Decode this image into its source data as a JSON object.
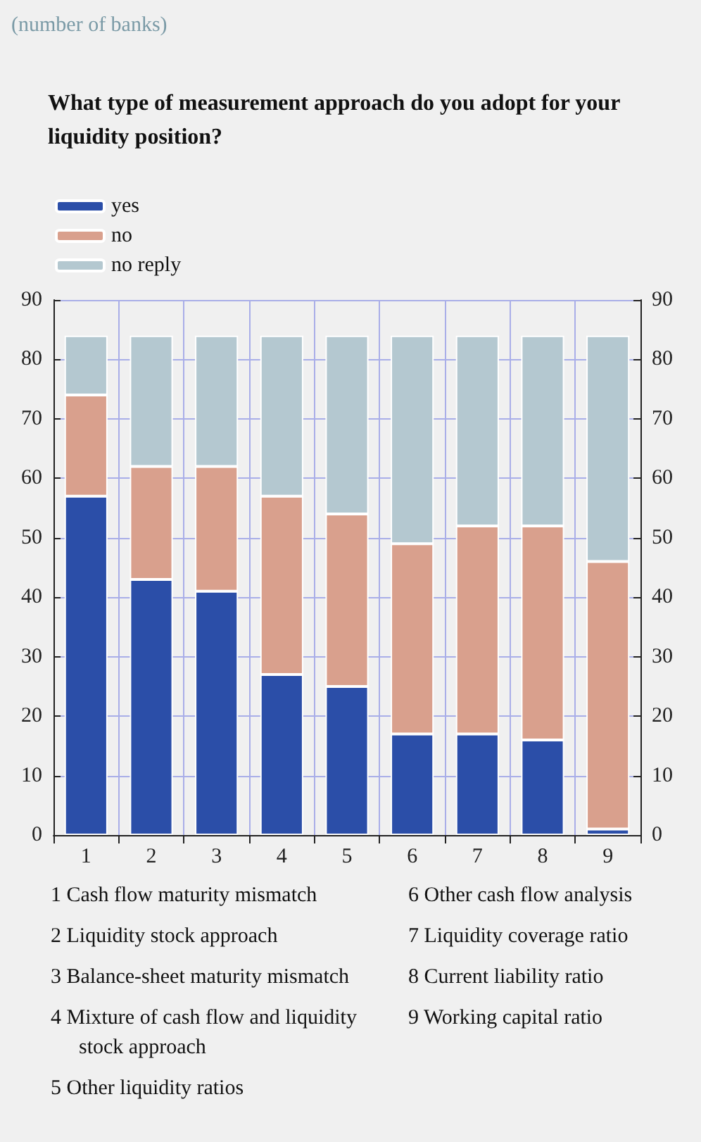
{
  "chart_data": {
    "type": "bar",
    "title": "What type of measurement approach do you adopt for your liquidity position?",
    "subtitle": "(number of banks)",
    "categories": [
      "1",
      "2",
      "3",
      "4",
      "5",
      "6",
      "7",
      "8",
      "9"
    ],
    "series": [
      {
        "name": "yes",
        "color": "#2b4ea8",
        "values": [
          57,
          43,
          41,
          27,
          25,
          17,
          17,
          16,
          1
        ]
      },
      {
        "name": "no",
        "color": "#d9a08d",
        "values": [
          17,
          19,
          21,
          30,
          29,
          32,
          35,
          36,
          45
        ]
      },
      {
        "name": "no reply",
        "color": "#b4c8d0",
        "values": [
          10,
          22,
          22,
          27,
          30,
          35,
          32,
          32,
          38
        ]
      }
    ],
    "stacked": true,
    "ylim": [
      0,
      90
    ],
    "yticks": [
      0,
      10,
      20,
      30,
      40,
      50,
      60,
      70,
      80,
      90
    ],
    "y2lim": [
      0,
      90
    ],
    "y2ticks": [
      0,
      10,
      20,
      30,
      40,
      50,
      60,
      70,
      80,
      90
    ],
    "grid": true,
    "legend": "top left",
    "annotations": [
      "1 Cash flow maturity mismatch",
      "2 Liquidity stock approach",
      "3 Balance-sheet maturity mismatch",
      "4 Mixture of cash flow and liquidity stock approach",
      "5 Other liquidity ratios",
      "6 Other cash flow analysis",
      "7 Liquidity coverage ratio",
      "8 Current liability ratio",
      "9 Working capital ratio"
    ]
  }
}
